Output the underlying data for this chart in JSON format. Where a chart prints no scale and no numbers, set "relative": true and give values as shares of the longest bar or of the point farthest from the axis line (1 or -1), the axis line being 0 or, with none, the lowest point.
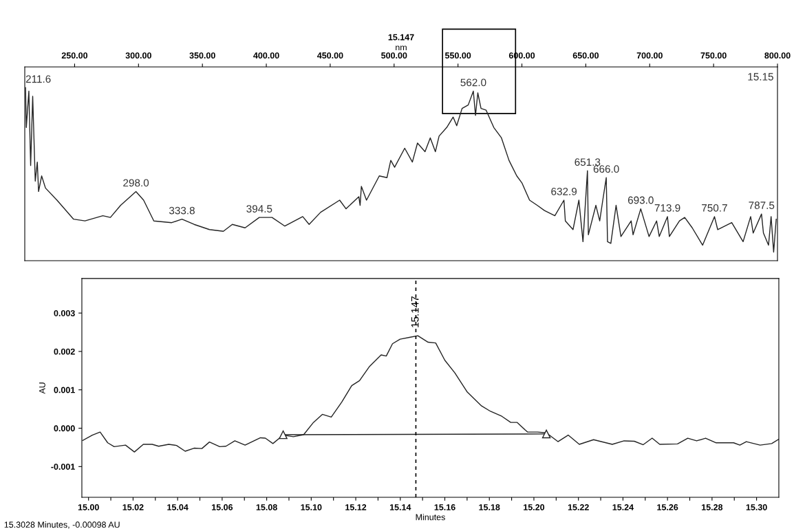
{
  "chart_data": [
    {
      "type": "line",
      "title": "15.147",
      "xlabel": "nm",
      "relative": true,
      "tick_labels": "x",
      "grid": false,
      "color": "#222222",
      "xlim": [
        211,
        800
      ],
      "xticks": [
        {
          "value": 250,
          "label": "250.00"
        },
        {
          "value": 300,
          "label": "300.00"
        },
        {
          "value": 350,
          "label": "350.00"
        },
        {
          "value": 400,
          "label": "400.00"
        },
        {
          "value": 450,
          "label": "450.00"
        },
        {
          "value": 500,
          "label": "500.00"
        },
        {
          "value": 550,
          "label": "550.00"
        },
        {
          "value": 600,
          "label": "600.00"
        },
        {
          "value": 650,
          "label": "650.00"
        },
        {
          "value": 700,
          "label": "700.00"
        },
        {
          "value": 750,
          "label": "750.00"
        },
        {
          "value": 800,
          "label": "800.00"
        }
      ],
      "x": [
        211.6,
        212.2,
        214.2,
        215.6,
        217.2,
        219.2,
        220.8,
        221.8,
        224.2,
        227.2,
        236.2,
        249.2,
        258.1,
        272.1,
        278,
        286,
        298,
        304,
        312,
        326,
        334,
        343.5,
        355.5,
        366.4,
        373.4,
        383.4,
        394.5,
        404.5,
        414.5,
        428.5,
        433.5,
        442.5,
        457.4,
        462.4,
        472.4,
        473.4,
        474.4,
        478.4,
        488.4,
        494.4,
        497.4,
        500.4,
        508.3,
        514.3,
        518.3,
        524.2,
        528.3,
        532.3,
        535.2,
        541.2,
        546.2,
        549,
        553.2,
        558,
        562,
        563.7,
        565.5,
        568,
        572,
        578,
        584,
        589.9,
        596,
        600,
        606,
        612,
        617.7,
        625.8,
        632.9,
        634,
        640,
        644.6,
        647.8,
        651.3,
        652,
        657.9,
        660.9,
        663.3,
        666,
        667,
        669.6,
        673.7,
        677.5,
        685.5,
        687,
        693,
        699.5,
        705.4,
        707.5,
        713.9,
        715.4,
        723.3,
        727.4,
        733.3,
        741.4,
        750.7,
        753.2,
        764.2,
        773.1,
        779,
        781,
        787.5,
        789,
        793,
        795,
        797,
        799
      ],
      "values": [
        1.0,
        0.77,
        0.98,
        0.55,
        0.95,
        0.46,
        0.57,
        0.4,
        0.49,
        0.42,
        0.35,
        0.24,
        0.23,
        0.26,
        0.25,
        0.32,
        0.4,
        0.35,
        0.23,
        0.22,
        0.24,
        0.21,
        0.18,
        0.17,
        0.21,
        0.19,
        0.25,
        0.25,
        0.2,
        0.255,
        0.21,
        0.28,
        0.35,
        0.3,
        0.37,
        0.32,
        0.43,
        0.35,
        0.49,
        0.48,
        0.58,
        0.54,
        0.65,
        0.57,
        0.68,
        0.63,
        0.71,
        0.63,
        0.72,
        0.77,
        0.83,
        0.78,
        0.88,
        0.9,
        0.98,
        0.84,
        0.97,
        0.88,
        0.87,
        0.77,
        0.71,
        0.58,
        0.49,
        0.45,
        0.35,
        0.32,
        0.29,
        0.26,
        0.35,
        0.23,
        0.18,
        0.35,
        0.11,
        0.52,
        0.15,
        0.32,
        0.23,
        0.35,
        0.48,
        0.11,
        0.1,
        0.32,
        0.14,
        0.23,
        0.15,
        0.3,
        0.14,
        0.23,
        0.14,
        0.255,
        0.14,
        0.23,
        0.25,
        0.19,
        0.09,
        0.255,
        0.18,
        0.22,
        0.11,
        0.255,
        0.16,
        0.27,
        0.16,
        0.09,
        0.255,
        0.05,
        0.24
      ],
      "annotations": [
        {
          "text": "211.6",
          "x": 211.6,
          "y": 1.0
        },
        {
          "text": "298.0",
          "x": 298,
          "y": 0.4
        },
        {
          "text": "333.8",
          "x": 334,
          "y": 0.24
        },
        {
          "text": "394.5",
          "x": 394.5,
          "y": 0.25
        },
        {
          "text": "562.0",
          "x": 562,
          "y": 0.98
        },
        {
          "text": "632.9",
          "x": 632.9,
          "y": 0.35
        },
        {
          "text": "651.3",
          "x": 651.3,
          "y": 0.52
        },
        {
          "text": "666.0",
          "x": 666,
          "y": 0.48
        },
        {
          "text": "693.0",
          "x": 693,
          "y": 0.3
        },
        {
          "text": "713.9",
          "x": 713.9,
          "y": 0.255
        },
        {
          "text": "750.7",
          "x": 750.7,
          "y": 0.255
        },
        {
          "text": "787.5",
          "x": 787.5,
          "y": 0.27
        },
        "15.15"
      ]
    },
    {
      "type": "line",
      "xlabel": "Minutes",
      "ylabel": "AU",
      "grid": false,
      "xlim": [
        14.997,
        15.31
      ],
      "ylim": [
        -0.0018,
        0.0039
      ],
      "xticks": [
        {
          "value": 15.0,
          "label": "15.00"
        },
        {
          "value": 15.01,
          "label": null
        },
        {
          "value": 15.02,
          "label": "15.02"
        },
        {
          "value": 15.03,
          "label": null
        },
        {
          "value": 15.04,
          "label": "15.04"
        },
        {
          "value": 15.05,
          "label": null
        },
        {
          "value": 15.06,
          "label": "15.06"
        },
        {
          "value": 15.07,
          "label": null
        },
        {
          "value": 15.08,
          "label": "15.08"
        },
        {
          "value": 15.09,
          "label": null
        },
        {
          "value": 15.1,
          "label": "15.10"
        },
        {
          "value": 15.11,
          "label": null
        },
        {
          "value": 15.12,
          "label": "15.12"
        },
        {
          "value": 15.13,
          "label": null
        },
        {
          "value": 15.14,
          "label": "15.14"
        },
        {
          "value": 15.15,
          "label": null
        },
        {
          "value": 15.16,
          "label": "15.16"
        },
        {
          "value": 15.17,
          "label": null
        },
        {
          "value": 15.18,
          "label": "15.18"
        },
        {
          "value": 15.19,
          "label": null
        },
        {
          "value": 15.2,
          "label": "15.20"
        },
        {
          "value": 15.21,
          "label": null
        },
        {
          "value": 15.22,
          "label": "15.22"
        },
        {
          "value": 15.23,
          "label": null
        },
        {
          "value": 15.24,
          "label": "15.24"
        },
        {
          "value": 15.25,
          "label": null
        },
        {
          "value": 15.26,
          "label": "15.26"
        },
        {
          "value": 15.27,
          "label": null
        },
        {
          "value": 15.28,
          "label": "15.28"
        },
        {
          "value": 15.29,
          "label": null
        },
        {
          "value": 15.3,
          "label": "15.30"
        }
      ],
      "yticks": [
        {
          "value": -0.001,
          "label": "-0.001"
        },
        {
          "value": 0,
          "label": "0.000"
        },
        {
          "value": 0.001,
          "label": "0.001"
        },
        {
          "value": 0.002,
          "label": "0.002"
        },
        {
          "value": 0.003,
          "label": "0.003"
        }
      ],
      "series": [
        {
          "color": "#222222",
          "marker": "none",
          "x": [
            14.9974,
            15.0017,
            15.0052,
            15.0086,
            15.0115,
            15.0166,
            15.0206,
            15.0246,
            15.0286,
            15.0315,
            15.036,
            15.0395,
            15.0434,
            15.0474,
            15.0509,
            15.0543,
            15.0589,
            15.0617,
            15.0657,
            15.0703,
            15.0772,
            15.0794,
            15.0828,
            15.0874,
            15.092,
            15.0966,
            15.101,
            15.105,
            15.109,
            15.1137,
            15.1182,
            15.1217,
            15.1262,
            15.1314,
            15.1337,
            15.1365,
            15.1399,
            15.1445,
            15.1479,
            15.1525,
            15.1559,
            15.16,
            15.1645,
            15.1701,
            15.1765,
            15.1805,
            15.1856,
            15.1896,
            15.1925,
            15.1971,
            15.2016,
            15.2056,
            15.2108,
            15.2154,
            15.2204,
            15.2268,
            15.2352,
            15.2405,
            15.2451,
            15.2491,
            15.2531,
            15.2565,
            15.2645,
            15.2691,
            15.2731,
            15.2771,
            15.2817,
            15.2897,
            15.2925,
            15.2954,
            15.3016,
            15.3068,
            15.3099
          ],
          "values": [
            -0.00032,
            -0.00018,
            -0.0001,
            -0.00038,
            -0.00048,
            -0.00044,
            -0.00062,
            -0.00042,
            -0.00042,
            -0.00047,
            -0.00042,
            -0.00045,
            -0.0006,
            -0.00052,
            -0.00053,
            -0.00036,
            -0.00048,
            -0.00047,
            -0.00033,
            -0.00044,
            -0.00025,
            -0.00026,
            -0.0004,
            -0.00018,
            -0.00022,
            -0.00017,
            0.00015,
            0.00036,
            0.00029,
            0.00068,
            0.00111,
            0.00124,
            0.00161,
            0.00191,
            0.00188,
            0.0022,
            0.00232,
            0.00237,
            0.00241,
            0.00224,
            0.00222,
            0.00177,
            0.00144,
            0.00094,
            0.00058,
            0.00044,
            0.00031,
            0.00015,
            0.00015,
            -0.0001,
            -0.0001,
            -0.00012,
            -0.00035,
            -0.00018,
            -0.00042,
            -0.0003,
            -0.00042,
            -0.00033,
            -0.00034,
            -0.00043,
            -0.00026,
            -0.00042,
            -0.00041,
            -0.00026,
            -0.00033,
            -0.00026,
            -0.00038,
            -0.00038,
            -0.00044,
            -0.00035,
            -0.00044,
            -0.0004,
            -0.00029
          ]
        },
        {
          "color": "#222222",
          "marker": "triangle",
          "x": [
            15.0874,
            15.2056
          ],
          "values": [
            -0.00017,
            -0.00015
          ]
        }
      ],
      "ref_lines": [
        {
          "axis": "x",
          "value": 15.147,
          "label": "15.147",
          "color": "#000000",
          "line_style": "dashed"
        }
      ],
      "annotations": [
        "15.3028 Minutes, -0.00098 AU"
      ]
    }
  ]
}
